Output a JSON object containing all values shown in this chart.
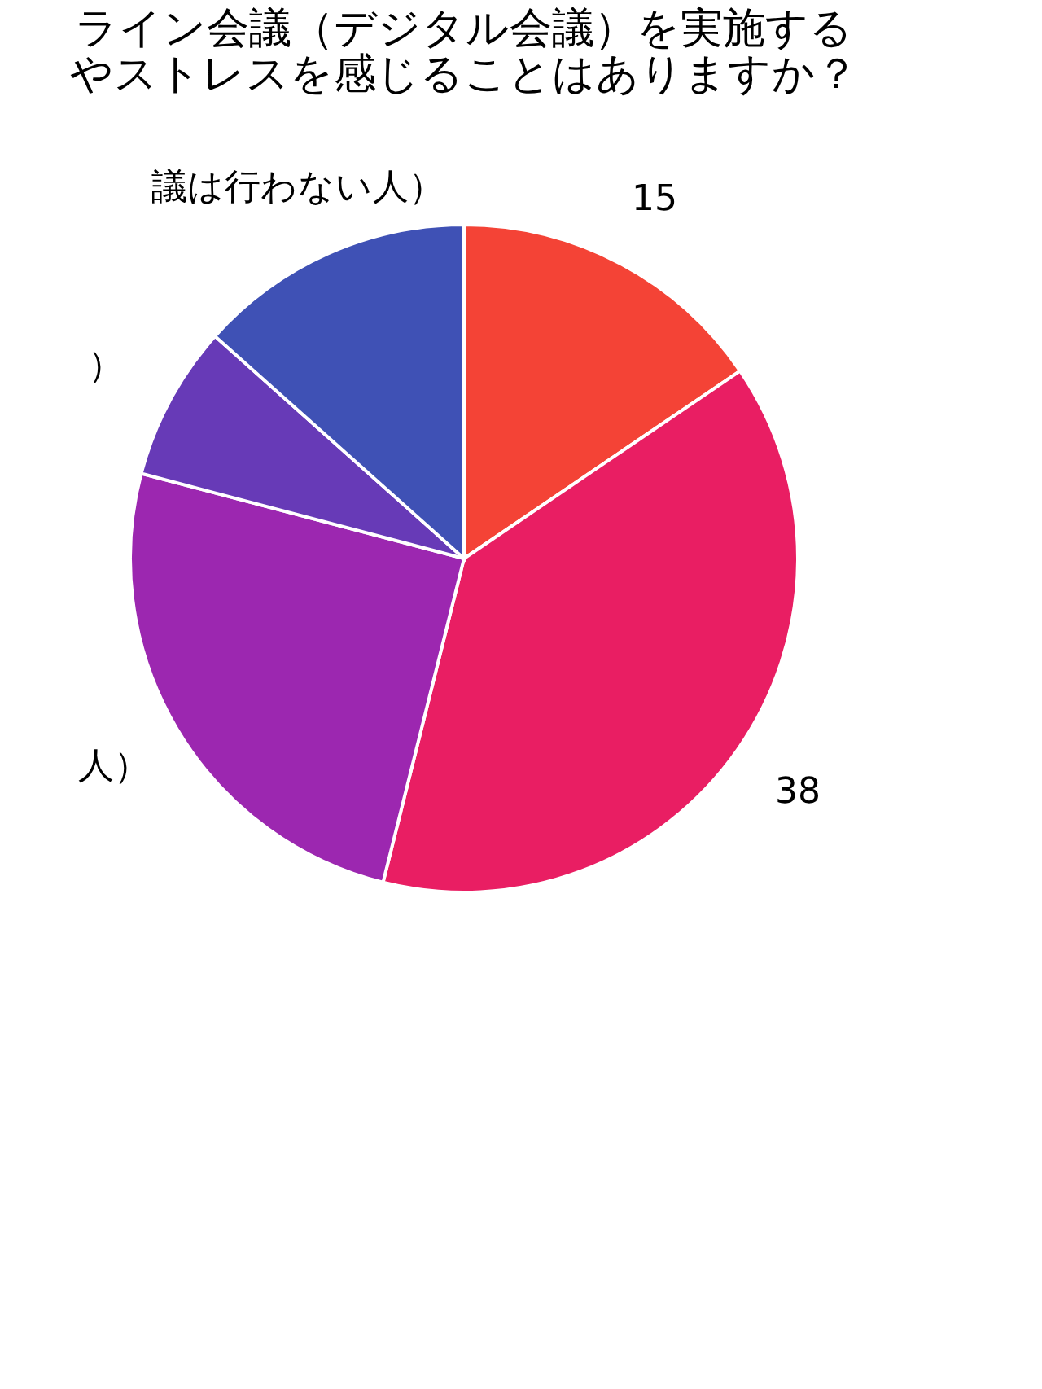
{
  "chart_data": {
    "type": "pie",
    "title": [
      "ライン会議（デジタル会議）を実施する",
      "やストレスを感じることはありますか？"
    ],
    "categories": [
      "15",
      "38",
      "人）",
      "）",
      "議は行わない人）"
    ],
    "values": [
      15.5,
      38.4,
      25.2,
      7.5,
      13.4
    ],
    "colors": [
      "#f44336",
      "#e91e63",
      "#9c27b0",
      "#673ab7",
      "#3f51b5"
    ],
    "legend": false
  }
}
